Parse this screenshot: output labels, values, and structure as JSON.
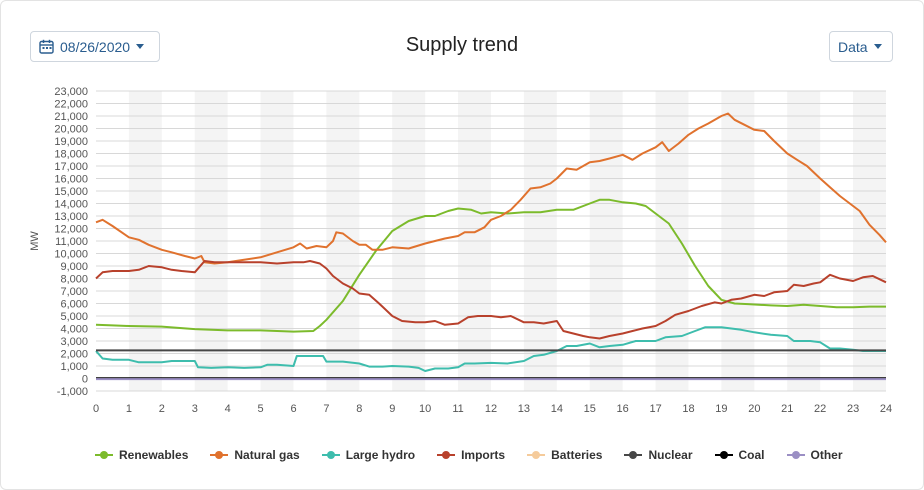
{
  "header": {
    "date_label": "08/26/2020",
    "title": "Supply trend",
    "data_label": "Data"
  },
  "chart_data": {
    "type": "line",
    "title": "Supply trend",
    "ylabel": "MW",
    "xlabel": "",
    "xlim": [
      0,
      24
    ],
    "ylim": [
      -1000,
      23000
    ],
    "x_ticks": [
      0,
      1,
      2,
      3,
      4,
      5,
      6,
      7,
      8,
      9,
      10,
      11,
      12,
      13,
      14,
      15,
      16,
      17,
      18,
      19,
      20,
      21,
      22,
      23,
      24
    ],
    "y_ticks": [
      -1000,
      0,
      1000,
      2000,
      3000,
      4000,
      5000,
      6000,
      7000,
      8000,
      9000,
      10000,
      11000,
      12000,
      13000,
      14000,
      15000,
      16000,
      17000,
      18000,
      19000,
      20000,
      21000,
      22000,
      23000
    ],
    "y_tick_labels": [
      "-1,000",
      "0",
      "1,000",
      "2,000",
      "3,000",
      "4,000",
      "5,000",
      "6,000",
      "7,000",
      "8,000",
      "9,000",
      "10,000",
      "11,000",
      "12,000",
      "13,000",
      "14,000",
      "15,000",
      "16,000",
      "17,000",
      "18,000",
      "19,000",
      "20,000",
      "21,000",
      "22,000",
      "23,000"
    ],
    "grid": true,
    "alternating_hour_bands": true,
    "legend_position": "bottom",
    "series": [
      {
        "name": "Renewables",
        "color": "#7cbb2c",
        "points": [
          [
            0,
            4300
          ],
          [
            0.5,
            4250
          ],
          [
            1,
            4200
          ],
          [
            2,
            4150
          ],
          [
            3,
            3950
          ],
          [
            3.5,
            3900
          ],
          [
            4,
            3850
          ],
          [
            5,
            3850
          ],
          [
            5.5,
            3800
          ],
          [
            6,
            3750
          ],
          [
            6.6,
            3800
          ],
          [
            6.8,
            4200
          ],
          [
            7,
            4700
          ],
          [
            7.5,
            6200
          ],
          [
            8,
            8300
          ],
          [
            8.5,
            10200
          ],
          [
            9,
            11800
          ],
          [
            9.5,
            12600
          ],
          [
            10,
            13000
          ],
          [
            10.3,
            13000
          ],
          [
            10.7,
            13400
          ],
          [
            11,
            13600
          ],
          [
            11.4,
            13500
          ],
          [
            11.7,
            13200
          ],
          [
            12,
            13300
          ],
          [
            12.5,
            13200
          ],
          [
            13,
            13300
          ],
          [
            13.5,
            13300
          ],
          [
            14,
            13500
          ],
          [
            14.5,
            13500
          ],
          [
            15,
            14000
          ],
          [
            15.3,
            14300
          ],
          [
            15.6,
            14300
          ],
          [
            16,
            14100
          ],
          [
            16.4,
            14000
          ],
          [
            16.7,
            13800
          ],
          [
            17,
            13200
          ],
          [
            17.4,
            12400
          ],
          [
            17.8,
            10800
          ],
          [
            18.2,
            9000
          ],
          [
            18.6,
            7400
          ],
          [
            19,
            6300
          ],
          [
            19.4,
            6000
          ],
          [
            19.8,
            5950
          ],
          [
            20.5,
            5850
          ],
          [
            21,
            5800
          ],
          [
            21.5,
            5900
          ],
          [
            22,
            5800
          ],
          [
            22.5,
            5700
          ],
          [
            23,
            5700
          ],
          [
            23.5,
            5750
          ],
          [
            24,
            5750
          ]
        ]
      },
      {
        "name": "Natural gas",
        "color": "#e0722e",
        "points": [
          [
            0,
            12500
          ],
          [
            0.2,
            12700
          ],
          [
            0.5,
            12200
          ],
          [
            1,
            11300
          ],
          [
            1.3,
            11100
          ],
          [
            1.6,
            10700
          ],
          [
            2,
            10300
          ],
          [
            2.3,
            10100
          ],
          [
            2.7,
            9800
          ],
          [
            3,
            9600
          ],
          [
            3.2,
            9800
          ],
          [
            3.3,
            9300
          ],
          [
            3.6,
            9200
          ],
          [
            4,
            9300
          ],
          [
            4.5,
            9500
          ],
          [
            5,
            9700
          ],
          [
            5.5,
            10100
          ],
          [
            6,
            10500
          ],
          [
            6.2,
            10800
          ],
          [
            6.4,
            10400
          ],
          [
            6.7,
            10600
          ],
          [
            7,
            10500
          ],
          [
            7.2,
            11000
          ],
          [
            7.3,
            11700
          ],
          [
            7.5,
            11600
          ],
          [
            7.8,
            11000
          ],
          [
            8,
            10700
          ],
          [
            8.2,
            10700
          ],
          [
            8.4,
            10300
          ],
          [
            8.7,
            10300
          ],
          [
            9,
            10500
          ],
          [
            9.5,
            10400
          ],
          [
            10,
            10800
          ],
          [
            10.3,
            11000
          ],
          [
            10.6,
            11200
          ],
          [
            11,
            11400
          ],
          [
            11.2,
            11700
          ],
          [
            11.5,
            11700
          ],
          [
            11.8,
            12100
          ],
          [
            12,
            12700
          ],
          [
            12.3,
            13000
          ],
          [
            12.6,
            13500
          ],
          [
            12.9,
            14300
          ],
          [
            13.2,
            15200
          ],
          [
            13.5,
            15300
          ],
          [
            13.8,
            15600
          ],
          [
            14,
            16000
          ],
          [
            14.3,
            16800
          ],
          [
            14.6,
            16700
          ],
          [
            15,
            17300
          ],
          [
            15.3,
            17400
          ],
          [
            15.6,
            17600
          ],
          [
            16,
            17900
          ],
          [
            16.3,
            17500
          ],
          [
            16.6,
            18000
          ],
          [
            17,
            18500
          ],
          [
            17.2,
            18900
          ],
          [
            17.4,
            18200
          ],
          [
            17.7,
            18800
          ],
          [
            18,
            19500
          ],
          [
            18.3,
            20000
          ],
          [
            18.6,
            20400
          ],
          [
            19,
            21000
          ],
          [
            19.2,
            21200
          ],
          [
            19.4,
            20700
          ],
          [
            19.7,
            20300
          ],
          [
            20,
            19900
          ],
          [
            20.3,
            19800
          ],
          [
            20.6,
            19000
          ],
          [
            21,
            18000
          ],
          [
            21.3,
            17500
          ],
          [
            21.6,
            17000
          ],
          [
            22,
            16000
          ],
          [
            22.3,
            15300
          ],
          [
            22.6,
            14600
          ],
          [
            23,
            13800
          ],
          [
            23.2,
            13400
          ],
          [
            23.5,
            12300
          ],
          [
            23.8,
            11500
          ],
          [
            24,
            10900
          ]
        ]
      },
      {
        "name": "Large hydro",
        "color": "#3ebdad",
        "points": [
          [
            0,
            2200
          ],
          [
            0.2,
            1600
          ],
          [
            0.5,
            1500
          ],
          [
            1,
            1500
          ],
          [
            1.3,
            1300
          ],
          [
            2,
            1300
          ],
          [
            2.3,
            1400
          ],
          [
            3,
            1400
          ],
          [
            3.1,
            900
          ],
          [
            3.5,
            850
          ],
          [
            4,
            900
          ],
          [
            4.5,
            850
          ],
          [
            5,
            900
          ],
          [
            5.2,
            1100
          ],
          [
            5.5,
            1100
          ],
          [
            6,
            1000
          ],
          [
            6.1,
            1800
          ],
          [
            6.5,
            1800
          ],
          [
            6.9,
            1800
          ],
          [
            7,
            1350
          ],
          [
            7.5,
            1350
          ],
          [
            8,
            1200
          ],
          [
            8.3,
            950
          ],
          [
            8.7,
            950
          ],
          [
            9,
            1000
          ],
          [
            9.5,
            950
          ],
          [
            9.8,
            850
          ],
          [
            10,
            600
          ],
          [
            10.3,
            800
          ],
          [
            10.7,
            800
          ],
          [
            11,
            900
          ],
          [
            11.2,
            1200
          ],
          [
            11.5,
            1200
          ],
          [
            12,
            1250
          ],
          [
            12.5,
            1200
          ],
          [
            13,
            1400
          ],
          [
            13.3,
            1800
          ],
          [
            13.6,
            1900
          ],
          [
            14,
            2200
          ],
          [
            14.3,
            2600
          ],
          [
            14.6,
            2600
          ],
          [
            15,
            2800
          ],
          [
            15.3,
            2500
          ],
          [
            15.6,
            2600
          ],
          [
            16,
            2700
          ],
          [
            16.4,
            3000
          ],
          [
            16.7,
            3000
          ],
          [
            17,
            3000
          ],
          [
            17.3,
            3300
          ],
          [
            17.8,
            3400
          ],
          [
            18.2,
            3800
          ],
          [
            18.5,
            4100
          ],
          [
            19,
            4100
          ],
          [
            19.3,
            4000
          ],
          [
            19.6,
            3900
          ],
          [
            20,
            3700
          ],
          [
            20.5,
            3500
          ],
          [
            21,
            3400
          ],
          [
            21.2,
            3000
          ],
          [
            21.7,
            3000
          ],
          [
            22,
            2900
          ],
          [
            22.3,
            2400
          ],
          [
            22.6,
            2400
          ],
          [
            23,
            2300
          ],
          [
            23.3,
            2200
          ],
          [
            24,
            2200
          ]
        ]
      },
      {
        "name": "Imports",
        "color": "#b8412c",
        "points": [
          [
            0,
            8000
          ],
          [
            0.2,
            8500
          ],
          [
            0.5,
            8600
          ],
          [
            1,
            8600
          ],
          [
            1.3,
            8700
          ],
          [
            1.6,
            9000
          ],
          [
            2,
            8900
          ],
          [
            2.3,
            8700
          ],
          [
            2.6,
            8600
          ],
          [
            3,
            8500
          ],
          [
            3.3,
            9400
          ],
          [
            3.6,
            9300
          ],
          [
            4,
            9300
          ],
          [
            4.5,
            9300
          ],
          [
            5,
            9300
          ],
          [
            5.5,
            9200
          ],
          [
            6,
            9300
          ],
          [
            6.3,
            9300
          ],
          [
            6.5,
            9400
          ],
          [
            6.8,
            9200
          ],
          [
            7,
            8800
          ],
          [
            7.2,
            8200
          ],
          [
            7.5,
            7600
          ],
          [
            7.8,
            7200
          ],
          [
            8,
            6800
          ],
          [
            8.3,
            6700
          ],
          [
            8.6,
            6000
          ],
          [
            9,
            5000
          ],
          [
            9.3,
            4600
          ],
          [
            9.7,
            4500
          ],
          [
            10,
            4500
          ],
          [
            10.3,
            4600
          ],
          [
            10.6,
            4300
          ],
          [
            11,
            4400
          ],
          [
            11.3,
            4900
          ],
          [
            11.6,
            5000
          ],
          [
            12,
            5000
          ],
          [
            12.3,
            4900
          ],
          [
            12.6,
            5000
          ],
          [
            13,
            4500
          ],
          [
            13.3,
            4500
          ],
          [
            13.6,
            4400
          ],
          [
            14,
            4600
          ],
          [
            14.2,
            3800
          ],
          [
            14.5,
            3600
          ],
          [
            14.8,
            3400
          ],
          [
            15,
            3300
          ],
          [
            15.3,
            3200
          ],
          [
            15.6,
            3400
          ],
          [
            16,
            3600
          ],
          [
            16.3,
            3800
          ],
          [
            16.6,
            4000
          ],
          [
            17,
            4200
          ],
          [
            17.3,
            4600
          ],
          [
            17.6,
            5100
          ],
          [
            18,
            5400
          ],
          [
            18.4,
            5800
          ],
          [
            18.8,
            6100
          ],
          [
            19,
            6000
          ],
          [
            19.3,
            6300
          ],
          [
            19.6,
            6400
          ],
          [
            20,
            6700
          ],
          [
            20.3,
            6600
          ],
          [
            20.6,
            6900
          ],
          [
            21,
            7000
          ],
          [
            21.2,
            7500
          ],
          [
            21.5,
            7400
          ],
          [
            21.8,
            7600
          ],
          [
            22,
            7700
          ],
          [
            22.3,
            8300
          ],
          [
            22.6,
            8000
          ],
          [
            23,
            7800
          ],
          [
            23.3,
            8100
          ],
          [
            23.6,
            8200
          ],
          [
            24,
            7700
          ]
        ]
      },
      {
        "name": "Batteries",
        "color": "#f5cb9b",
        "points": [
          [
            0,
            0
          ],
          [
            24,
            0
          ]
        ]
      },
      {
        "name": "Nuclear",
        "color": "#474747",
        "points": [
          [
            0,
            2250
          ],
          [
            24,
            2250
          ]
        ]
      },
      {
        "name": "Coal",
        "color": "#000000",
        "points": [
          [
            0,
            20
          ],
          [
            24,
            20
          ]
        ]
      },
      {
        "name": "Other",
        "color": "#9b8fc4",
        "points": [
          [
            0,
            -50
          ],
          [
            24,
            -50
          ]
        ]
      }
    ]
  }
}
